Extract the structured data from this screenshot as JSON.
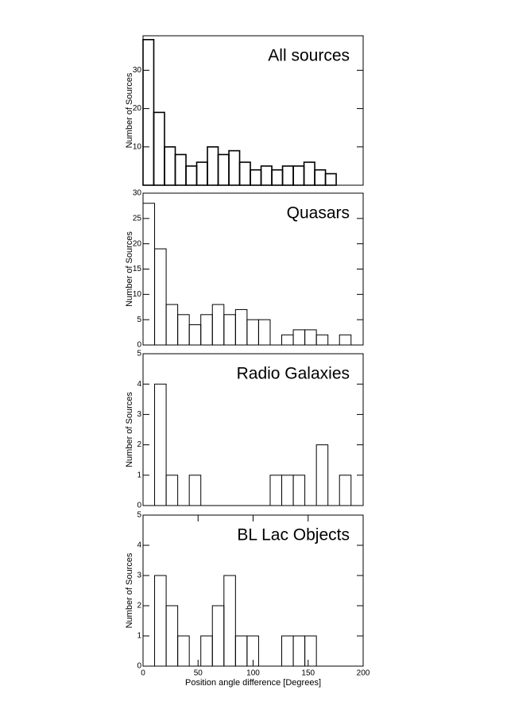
{
  "chart_data": [
    {
      "type": "histogram",
      "title": "All sources",
      "ylabel": "Number of Sources",
      "bins": [
        0,
        9.75,
        19.5,
        29.25,
        39,
        48.75,
        58.5,
        68.25,
        78,
        87.75,
        97.5,
        107.25,
        117,
        126.75,
        136.5,
        146.25,
        156,
        165.75,
        175.5
      ],
      "values": [
        38,
        19,
        10,
        8,
        5,
        6,
        10,
        8,
        9,
        6,
        4,
        5,
        4,
        5,
        5,
        6,
        4,
        3
      ],
      "xlim": [
        0,
        200
      ],
      "ylim": [
        0,
        39
      ],
      "yticks": [
        10,
        20,
        30
      ]
    },
    {
      "type": "histogram",
      "title": "Quasars",
      "ylabel": "Number of Sources",
      "bins": [
        0,
        10.5,
        21,
        31.5,
        42,
        52.5,
        63,
        73.5,
        84,
        94.5,
        105,
        115.5,
        126,
        136.5,
        147,
        157.5,
        168,
        178.5,
        189
      ],
      "values": [
        28,
        19,
        8,
        6,
        4,
        6,
        8,
        6,
        7,
        5,
        5,
        0,
        2,
        3,
        3,
        2,
        0,
        2
      ],
      "xlim": [
        0,
        200
      ],
      "ylim": [
        0,
        30
      ],
      "yticks": [
        0,
        5,
        10,
        15,
        20,
        25,
        30
      ]
    },
    {
      "type": "histogram",
      "title": "Radio Galaxies",
      "ylabel": "Number of Sources",
      "bins": [
        0,
        10.5,
        21,
        31.5,
        42,
        52.5,
        63,
        73.5,
        84,
        94.5,
        105,
        115.5,
        126,
        136.5,
        147,
        157.5,
        168,
        178.5,
        189
      ],
      "values": [
        0,
        4,
        1,
        0,
        1,
        0,
        0,
        0,
        0,
        0,
        0,
        1,
        1,
        1,
        0,
        2,
        0,
        1
      ],
      "xlim": [
        0,
        200
      ],
      "ylim": [
        0,
        5
      ],
      "yticks": [
        0,
        1,
        2,
        3,
        4,
        5
      ]
    },
    {
      "type": "histogram",
      "title": "BL Lac Objects",
      "ylabel": "Number of Sources",
      "xlabel": "Position angle difference [Degrees]",
      "bins": [
        0,
        10.5,
        21,
        31.5,
        42,
        52.5,
        63,
        73.5,
        84,
        94.5,
        105,
        115.5,
        126,
        136.5,
        147,
        157.5,
        168,
        178.5,
        189
      ],
      "values": [
        0,
        3,
        2,
        1,
        0,
        1,
        2,
        3,
        1,
        1,
        0,
        0,
        1,
        1,
        1,
        0,
        0,
        0
      ],
      "xlim": [
        0,
        200
      ],
      "ylim": [
        0,
        5
      ],
      "yticks": [
        0,
        1,
        2,
        3,
        4,
        5
      ],
      "xticks": [
        0,
        50,
        100,
        150,
        200
      ]
    }
  ]
}
